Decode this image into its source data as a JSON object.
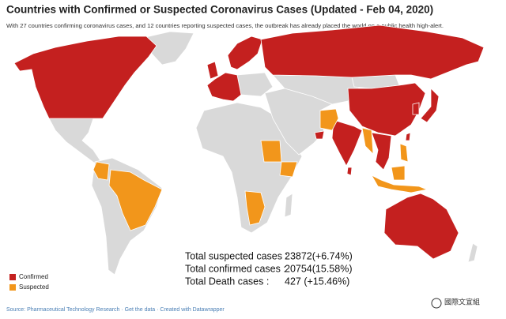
{
  "header": {
    "title": "Countries with Confirmed or Suspected Coronavirus Cases  (Updated - Feb 04, 2020)",
    "subtitle": "With 27 countries confirming coronavirus cases, and 12 countries reporting suspected cases, the outbreak has already placed the world on a public health high-alert."
  },
  "legend": [
    {
      "label": "Confirmed",
      "color": "#c4201f"
    },
    {
      "label": "Suspected",
      "color": "#f2961b"
    }
  ],
  "stats": [
    {
      "label": "Total suspected cases :",
      "value": "23872(+6.74%)"
    },
    {
      "label": "Total confirmed cases :",
      "value": "20754(15.58%)"
    },
    {
      "label": "Total Death cases :",
      "value": "427 (+15.46%)"
    }
  ],
  "footer": {
    "source": "Source: Pharmaceutical Technology Research · Get the data · Created with Datawrapper",
    "watermark": "國際文宣組"
  }
}
